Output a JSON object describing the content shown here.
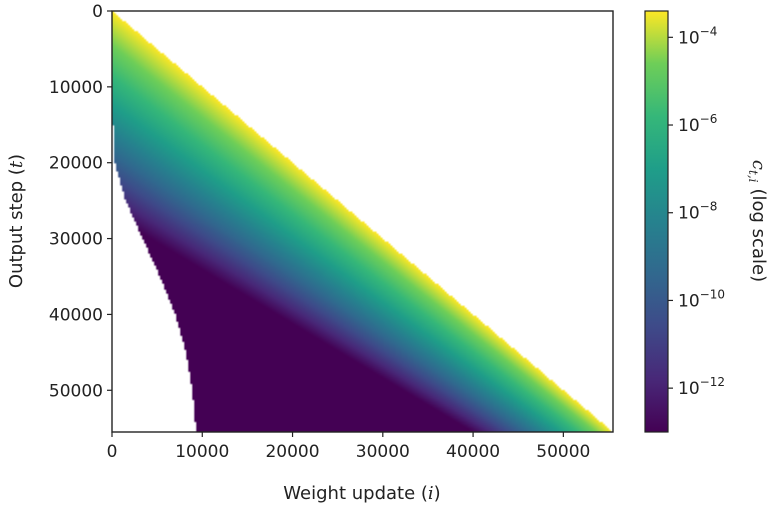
{
  "chart_data": {
    "type": "heatmap",
    "title": "",
    "xlabel": "Weight update (i)",
    "xlabel_parts": {
      "text": "Weight update (",
      "var": "i",
      "close": ")"
    },
    "ylabel": "Output step (t)",
    "ylabel_parts": {
      "text": "Output step (",
      "var": "t",
      "close": ")"
    },
    "xlim": [
      0,
      55500
    ],
    "ylim": [
      0,
      55500
    ],
    "y_inverted": true,
    "x_ticks": [
      0,
      10000,
      20000,
      30000,
      40000,
      50000
    ],
    "x_tick_labels": [
      "0",
      "10000",
      "20000",
      "30000",
      "40000",
      "50000"
    ],
    "y_ticks": [
      0,
      10000,
      20000,
      30000,
      40000,
      50000
    ],
    "y_tick_labels": [
      "0",
      "10000",
      "20000",
      "30000",
      "40000",
      "50000"
    ],
    "mask": "upper triangle where i <= t; values below floor 1e-13 not drawn",
    "colorbar": {
      "label_var": "c",
      "label_sub": "t,i",
      "label_text": "(log scale)",
      "scale": "log",
      "range_exp": [
        -13,
        -3.4
      ],
      "ticks_exp": [
        -4,
        -6,
        -8,
        -10,
        -12
      ],
      "tick_base": "10",
      "tick_exponents": [
        "−4",
        "−6",
        "−8",
        "−10",
        "−12"
      ],
      "colormap": "viridis"
    },
    "left_boundary_samples": [
      {
        "t": 12000,
        "i": 0
      },
      {
        "t": 20000,
        "i": 300
      },
      {
        "t": 25000,
        "i": 1500
      },
      {
        "t": 30000,
        "i": 3400
      },
      {
        "t": 35000,
        "i": 5300
      },
      {
        "t": 40000,
        "i": 7000
      },
      {
        "t": 45000,
        "i": 8200
      },
      {
        "t": 50000,
        "i": 8900
      },
      {
        "t": 55500,
        "i": 9300
      }
    ],
    "colors": {
      "min": "#440154",
      "mid": "#21918c",
      "max": "#fde725"
    }
  }
}
